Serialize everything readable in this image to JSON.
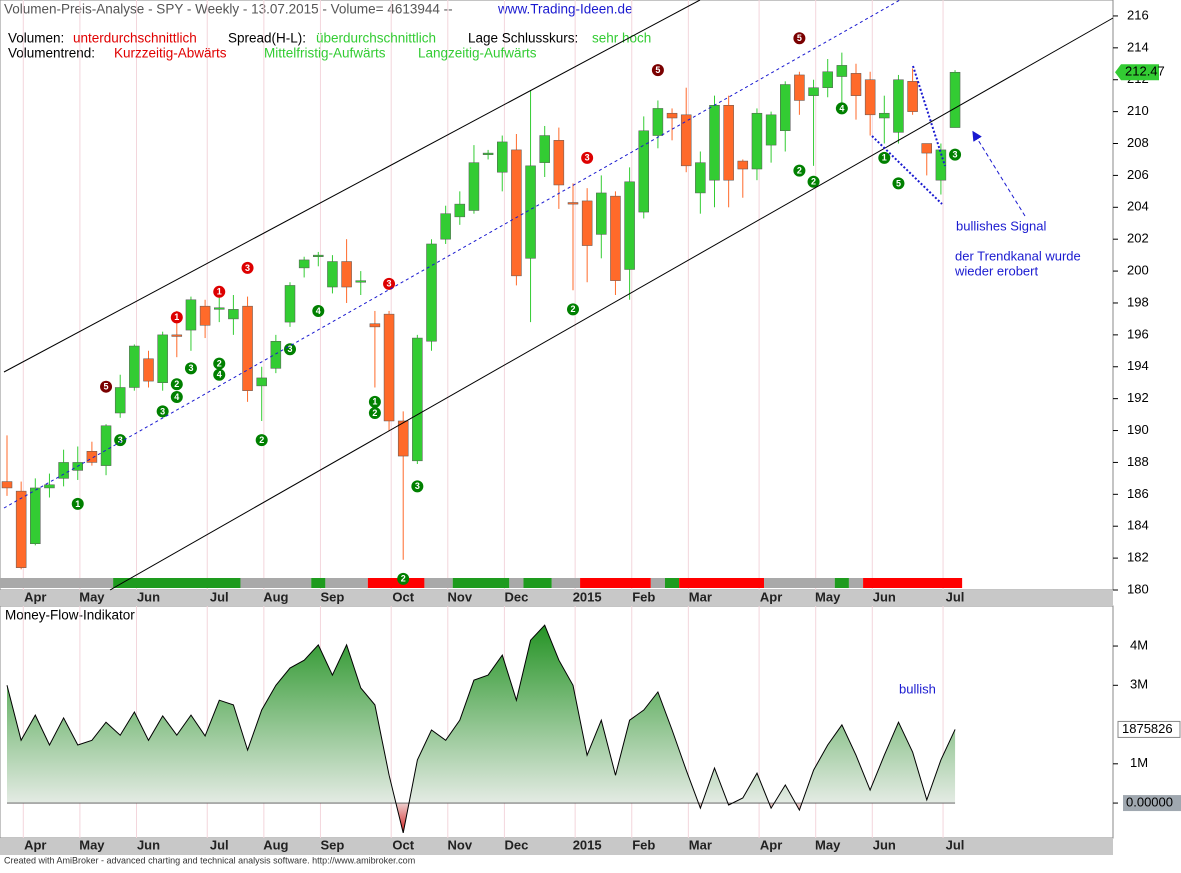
{
  "chart_data": [
    {
      "type": "candlestick",
      "title": "Volumen-Preis-Analyse - SPY - Weekly  - 13.07.2015 - Volume= 4613944 --",
      "website": "www.Trading-Ideen.de",
      "info": [
        {
          "label": "Volumen:",
          "value": "unterdurchschnittlich",
          "color": "#e00000"
        },
        {
          "label": "Spread(H-L):",
          "value": "überdurchschnittlich",
          "color": "#33cc33"
        },
        {
          "label": "Lage Schlusskurs:",
          "value": "sehr hoch",
          "color": "#33cc33"
        }
      ],
      "trend_label": "Volumentrend:",
      "trends": [
        {
          "text": "Kurzzeitig-Abwärts",
          "color": "#e00000"
        },
        {
          "text": "Mittelfristig-Aufwärts",
          "color": "#33cc33"
        },
        {
          "text": "Langzeitig-Aufwärts",
          "color": "#33cc33"
        }
      ],
      "categories": [
        null,
        null,
        "Apr",
        null,
        null,
        null,
        "May",
        null,
        null,
        null,
        "Jun",
        null,
        null,
        null,
        null,
        "Jul",
        null,
        null,
        null,
        "Aug",
        null,
        null,
        null,
        "Sep",
        null,
        null,
        null,
        null,
        "Oct",
        null,
        null,
        null,
        "Nov",
        null,
        null,
        null,
        "Dec",
        null,
        null,
        null,
        null,
        "2015",
        null,
        null,
        null,
        "Feb",
        null,
        null,
        null,
        "Mar",
        null,
        null,
        null,
        null,
        "Apr",
        null,
        null,
        null,
        "May",
        null,
        null,
        null,
        "Jun",
        null,
        null,
        null,
        null,
        "Jul"
      ],
      "open": [
        186.8,
        186.2,
        182.9,
        186.4,
        187.0,
        187.5,
        188.7,
        187.8,
        191.1,
        192.7,
        194.5,
        193.0,
        196.0,
        196.3,
        197.8,
        197.6,
        197.0,
        197.8,
        192.8,
        193.9,
        196.8,
        200.2,
        200.9,
        199.0,
        200.6,
        199.3,
        196.7,
        197.3,
        190.6,
        188.1,
        195.6,
        202.0,
        203.4,
        203.8,
        207.3,
        206.2,
        207.6,
        200.8,
        206.8,
        208.2,
        204.3,
        204.4,
        202.3,
        204.7,
        200.1,
        203.7,
        208.5,
        209.9,
        209.8,
        204.9,
        205.7,
        210.4,
        206.9,
        206.4,
        207.9,
        208.8,
        212.3,
        211.0,
        211.5,
        212.2,
        212.4,
        212.0,
        209.6,
        208.7,
        211.9,
        208.0,
        205.7,
        209.0
      ],
      "high": [
        189.7,
        186.8,
        187.0,
        187.3,
        188.8,
        189.0,
        189.3,
        190.4,
        193.5,
        195.4,
        195.0,
        196.2,
        197.5,
        198.4,
        198.2,
        198.5,
        198.5,
        198.4,
        194.0,
        196.0,
        199.3,
        200.9,
        201.2,
        201.0,
        202.0,
        200.0,
        197.5,
        197.5,
        191.2,
        196.0,
        202.0,
        204.1,
        205.0,
        207.9,
        207.6,
        208.5,
        208.6,
        211.3,
        209.1,
        209.0,
        205.5,
        205.2,
        206.0,
        205.0,
        206.5,
        209.7,
        210.7,
        210.2,
        211.5,
        207.5,
        211.0,
        211.0,
        207.0,
        210.2,
        210.0,
        211.9,
        212.5,
        212.0,
        213.3,
        213.7,
        213.0,
        212.5,
        211.0,
        212.3,
        212.7,
        208.0,
        208.0,
        212.6
      ],
      "low": [
        185.9,
        181.3,
        182.8,
        185.8,
        186.5,
        186.9,
        187.8,
        187.2,
        190.8,
        192.5,
        192.7,
        192.5,
        194.6,
        195.0,
        195.8,
        196.8,
        196.0,
        191.8,
        190.6,
        193.6,
        196.5,
        199.6,
        200.3,
        198.6,
        198.0,
        198.5,
        192.7,
        190.0,
        181.9,
        187.9,
        195.0,
        201.7,
        202.9,
        203.6,
        207.0,
        205.0,
        199.1,
        196.8,
        205.9,
        203.9,
        198.8,
        199.3,
        200.8,
        198.5,
        198.2,
        203.3,
        207.7,
        208.2,
        206.2,
        203.6,
        204.0,
        204.0,
        204.6,
        205.7,
        206.8,
        207.5,
        209.8,
        206.6,
        210.9,
        210.2,
        209.5,
        208.5,
        208.0,
        208.0,
        209.8,
        206.0,
        204.8,
        209.0
      ],
      "close": [
        186.4,
        181.4,
        186.4,
        186.6,
        188.0,
        188.0,
        188.0,
        190.3,
        192.7,
        195.3,
        193.1,
        196.0,
        195.9,
        198.2,
        196.6,
        197.7,
        197.6,
        192.5,
        193.3,
        195.6,
        199.1,
        200.7,
        201.0,
        200.6,
        199.0,
        199.4,
        196.5,
        190.6,
        188.4,
        195.8,
        201.7,
        203.6,
        204.2,
        206.8,
        207.4,
        208.1,
        199.7,
        206.6,
        208.5,
        205.4,
        204.2,
        201.6,
        204.9,
        199.4,
        205.6,
        208.8,
        210.2,
        209.6,
        206.6,
        206.8,
        210.4,
        205.7,
        206.4,
        209.9,
        209.8,
        211.7,
        210.7,
        211.5,
        212.5,
        212.9,
        211.0,
        209.8,
        209.9,
        212.0,
        210.0,
        207.4,
        207.6,
        212.47
      ],
      "up_color": "#33cc33",
      "down_color": "#ff6a2a",
      "ylim": [
        180,
        217
      ],
      "yticks": [
        180,
        182,
        184,
        186,
        188,
        190,
        192,
        194,
        196,
        198,
        200,
        202,
        204,
        206,
        208,
        210,
        212,
        214,
        216
      ],
      "signals": [
        {
          "index": 5,
          "price": 185.4,
          "label": 1,
          "color": "#008000"
        },
        {
          "index": 7,
          "price": 192.75,
          "label": 5,
          "color": "#7a0000"
        },
        {
          "index": 8,
          "price": 189.4,
          "label": 3,
          "color": "#008000"
        },
        {
          "index": 11,
          "price": 191.2,
          "label": 3,
          "color": "#008000"
        },
        {
          "index": 12,
          "price": 192.1,
          "label": 4,
          "color": "#008000"
        },
        {
          "index": 12,
          "price": 192.9,
          "label": 2,
          "color": "#008000"
        },
        {
          "index": 12,
          "price": 197.1,
          "label": 1,
          "color": "#dd0000"
        },
        {
          "index": 13,
          "price": 193.9,
          "label": 3,
          "color": "#008000"
        },
        {
          "index": 15,
          "price": 198.7,
          "label": 1,
          "color": "#dd0000"
        },
        {
          "index": 15,
          "price": 193.5,
          "label": 4,
          "color": "#008000"
        },
        {
          "index": 15,
          "price": 194.2,
          "label": 2,
          "color": "#008000"
        },
        {
          "index": 17,
          "price": 200.2,
          "label": 3,
          "color": "#dd0000"
        },
        {
          "index": 18,
          "price": 189.4,
          "label": 2,
          "color": "#008000"
        },
        {
          "index": 20,
          "price": 195.1,
          "label": 3,
          "color": "#008000"
        },
        {
          "index": 22,
          "price": 197.5,
          "label": 4,
          "color": "#008000"
        },
        {
          "index": 26,
          "price": 191.1,
          "label": 2,
          "color": "#008000"
        },
        {
          "index": 26,
          "price": 191.8,
          "label": 1,
          "color": "#008000"
        },
        {
          "index": 27,
          "price": 199.2,
          "label": 3,
          "color": "#dd0000"
        },
        {
          "index": 28,
          "price": 180.7,
          "label": 2,
          "color": "#008000"
        },
        {
          "index": 29,
          "price": 186.5,
          "label": 3,
          "color": "#008000"
        },
        {
          "index": 40,
          "price": 197.6,
          "label": 2,
          "color": "#008000"
        },
        {
          "index": 41,
          "price": 207.1,
          "label": 3,
          "color": "#dd0000"
        },
        {
          "index": 46,
          "price": 212.6,
          "label": 5,
          "color": "#7a0000"
        },
        {
          "index": 56,
          "price": 214.6,
          "label": 5,
          "color": "#7a0000"
        },
        {
          "index": 56,
          "price": 206.3,
          "label": 2,
          "color": "#008000"
        },
        {
          "index": 57,
          "price": 205.6,
          "label": 2,
          "color": "#008000"
        },
        {
          "index": 59,
          "price": 210.2,
          "label": 4,
          "color": "#008000"
        },
        {
          "index": 62,
          "price": 207.1,
          "label": 1,
          "color": "#008000"
        },
        {
          "index": 63,
          "price": 205.5,
          "label": 5,
          "color": "#008000"
        },
        {
          "index": 67,
          "price": 207.3,
          "label": 3,
          "color": "#008000"
        }
      ],
      "trend_bar": [
        {
          "from": 0,
          "to": 7,
          "color": "#a9a9a9"
        },
        {
          "from": 8,
          "to": 16,
          "color": "#1e9b1e"
        },
        {
          "from": 17,
          "to": 21,
          "color": "#a9a9a9"
        },
        {
          "from": 22,
          "to": 22,
          "color": "#1e9b1e"
        },
        {
          "from": 23,
          "to": 25,
          "color": "#a9a9a9"
        },
        {
          "from": 26,
          "to": 29,
          "color": "#ff0000"
        },
        {
          "from": 30,
          "to": 31,
          "color": "#a9a9a9"
        },
        {
          "from": 32,
          "to": 35,
          "color": "#1e9b1e"
        },
        {
          "from": 36,
          "to": 36,
          "color": "#a9a9a9"
        },
        {
          "from": 37,
          "to": 38,
          "color": "#1e9b1e"
        },
        {
          "from": 39,
          "to": 40,
          "color": "#a9a9a9"
        },
        {
          "from": 41,
          "to": 45,
          "color": "#ff0000"
        },
        {
          "from": 46,
          "to": 46,
          "color": "#a9a9a9"
        },
        {
          "from": 47,
          "to": 47,
          "color": "#1e9b1e"
        },
        {
          "from": 48,
          "to": 53,
          "color": "#ff0000"
        },
        {
          "from": 54,
          "to": 58,
          "color": "#a9a9a9"
        },
        {
          "from": 59,
          "to": 59,
          "color": "#1e9b1e"
        },
        {
          "from": 60,
          "to": 60,
          "color": "#a9a9a9"
        },
        {
          "from": 61,
          "to": 67,
          "color": "#ff0000"
        }
      ],
      "annotations": [
        "bullishes Signal",
        "der Trendkanal wurde",
        "wieder erobert"
      ]
    },
    {
      "type": "area",
      "title": "Money-Flow-Indikator",
      "categories": [
        null,
        null,
        "Apr",
        null,
        null,
        null,
        "May",
        null,
        null,
        null,
        "Jun",
        null,
        null,
        null,
        null,
        "Jul",
        null,
        null,
        null,
        "Aug",
        null,
        null,
        null,
        "Sep",
        null,
        null,
        null,
        null,
        "Oct",
        null,
        null,
        null,
        "Nov",
        null,
        null,
        null,
        "Dec",
        null,
        null,
        null,
        null,
        "2015",
        null,
        null,
        null,
        "Feb",
        null,
        null,
        null,
        "Mar",
        null,
        null,
        null,
        null,
        "Apr",
        null,
        null,
        null,
        "May",
        null,
        null,
        null,
        "Jun",
        null,
        null,
        null,
        null,
        "Jul"
      ],
      "values": [
        3000000,
        1600000,
        2240000,
        1480000,
        2170000,
        1480000,
        1600000,
        2060000,
        1730000,
        2320000,
        1600000,
        2220000,
        1730000,
        2240000,
        1710000,
        2620000,
        2500000,
        1350000,
        2370000,
        3000000,
        3440000,
        3640000,
        4030000,
        3260000,
        4030000,
        2930000,
        2500000,
        710000,
        -760000,
        1100000,
        1860000,
        1600000,
        2110000,
        3130000,
        3260000,
        3770000,
        2620000,
        4150000,
        4530000,
        3640000,
        3000000,
        1220000,
        2110000,
        710000,
        2110000,
        2370000,
        2830000,
        1860000,
        840000,
        -130000,
        890000,
        -50000,
        130000,
        760000,
        -130000,
        460000,
        -180000,
        840000,
        1480000,
        1990000,
        1220000,
        330000,
        1220000,
        2060000,
        1300000,
        80000,
        1100000,
        1875826
      ],
      "color": "#108a10",
      "negative_color": "#cc0000",
      "ylim": [
        -890000,
        5020000
      ],
      "yticks": [
        {
          "value": 0,
          "label": "0.00000"
        },
        {
          "value": 1000000,
          "label": "1M"
        },
        {
          "value": 3000000,
          "label": "3M"
        },
        {
          "value": 4000000,
          "label": "4M"
        }
      ],
      "annotation": "bullish"
    }
  ],
  "footer": "Created with AmiBroker - advanced charting and technical analysis software. http://www.amibroker.com"
}
